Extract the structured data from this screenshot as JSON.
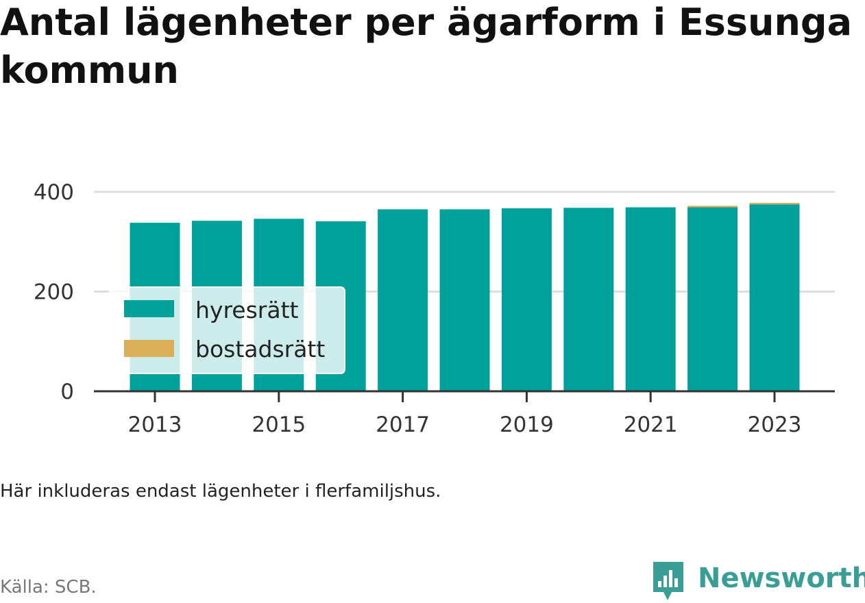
{
  "title": "Antal lägenheter per ägarform i Essunga kommun",
  "note": "Här inkluderas endast lägenheter i flerfamiljshus.",
  "source": "Källa: SCB.",
  "brand": "Newsworthy",
  "colors": {
    "hyresratt": "#00a19a",
    "bostadsratt": "#dbae59",
    "grid": "#dddddd",
    "axis": "#333333",
    "brand": "#3a9e96"
  },
  "chart_data": {
    "type": "bar",
    "stacked": true,
    "categories": [
      "2013",
      "2014",
      "2015",
      "2016",
      "2017",
      "2018",
      "2019",
      "2020",
      "2021",
      "2022",
      "2023"
    ],
    "x_tick_labels": [
      "2013",
      "2015",
      "2017",
      "2019",
      "2021",
      "2023"
    ],
    "series": [
      {
        "name": "hyresrätt",
        "color": "#00a19a",
        "values": [
          338,
          342,
          346,
          341,
          365,
          365,
          367,
          368,
          369,
          369,
          375
        ]
      },
      {
        "name": "bostadsrätt",
        "color": "#dbae59",
        "values": [
          0,
          0,
          0,
          0,
          0,
          0,
          0,
          0,
          0,
          3,
          3
        ]
      }
    ],
    "ylim": [
      0,
      400
    ],
    "y_ticks": [
      0,
      200,
      400
    ],
    "grid": true,
    "legend_position": "bottom-left"
  }
}
